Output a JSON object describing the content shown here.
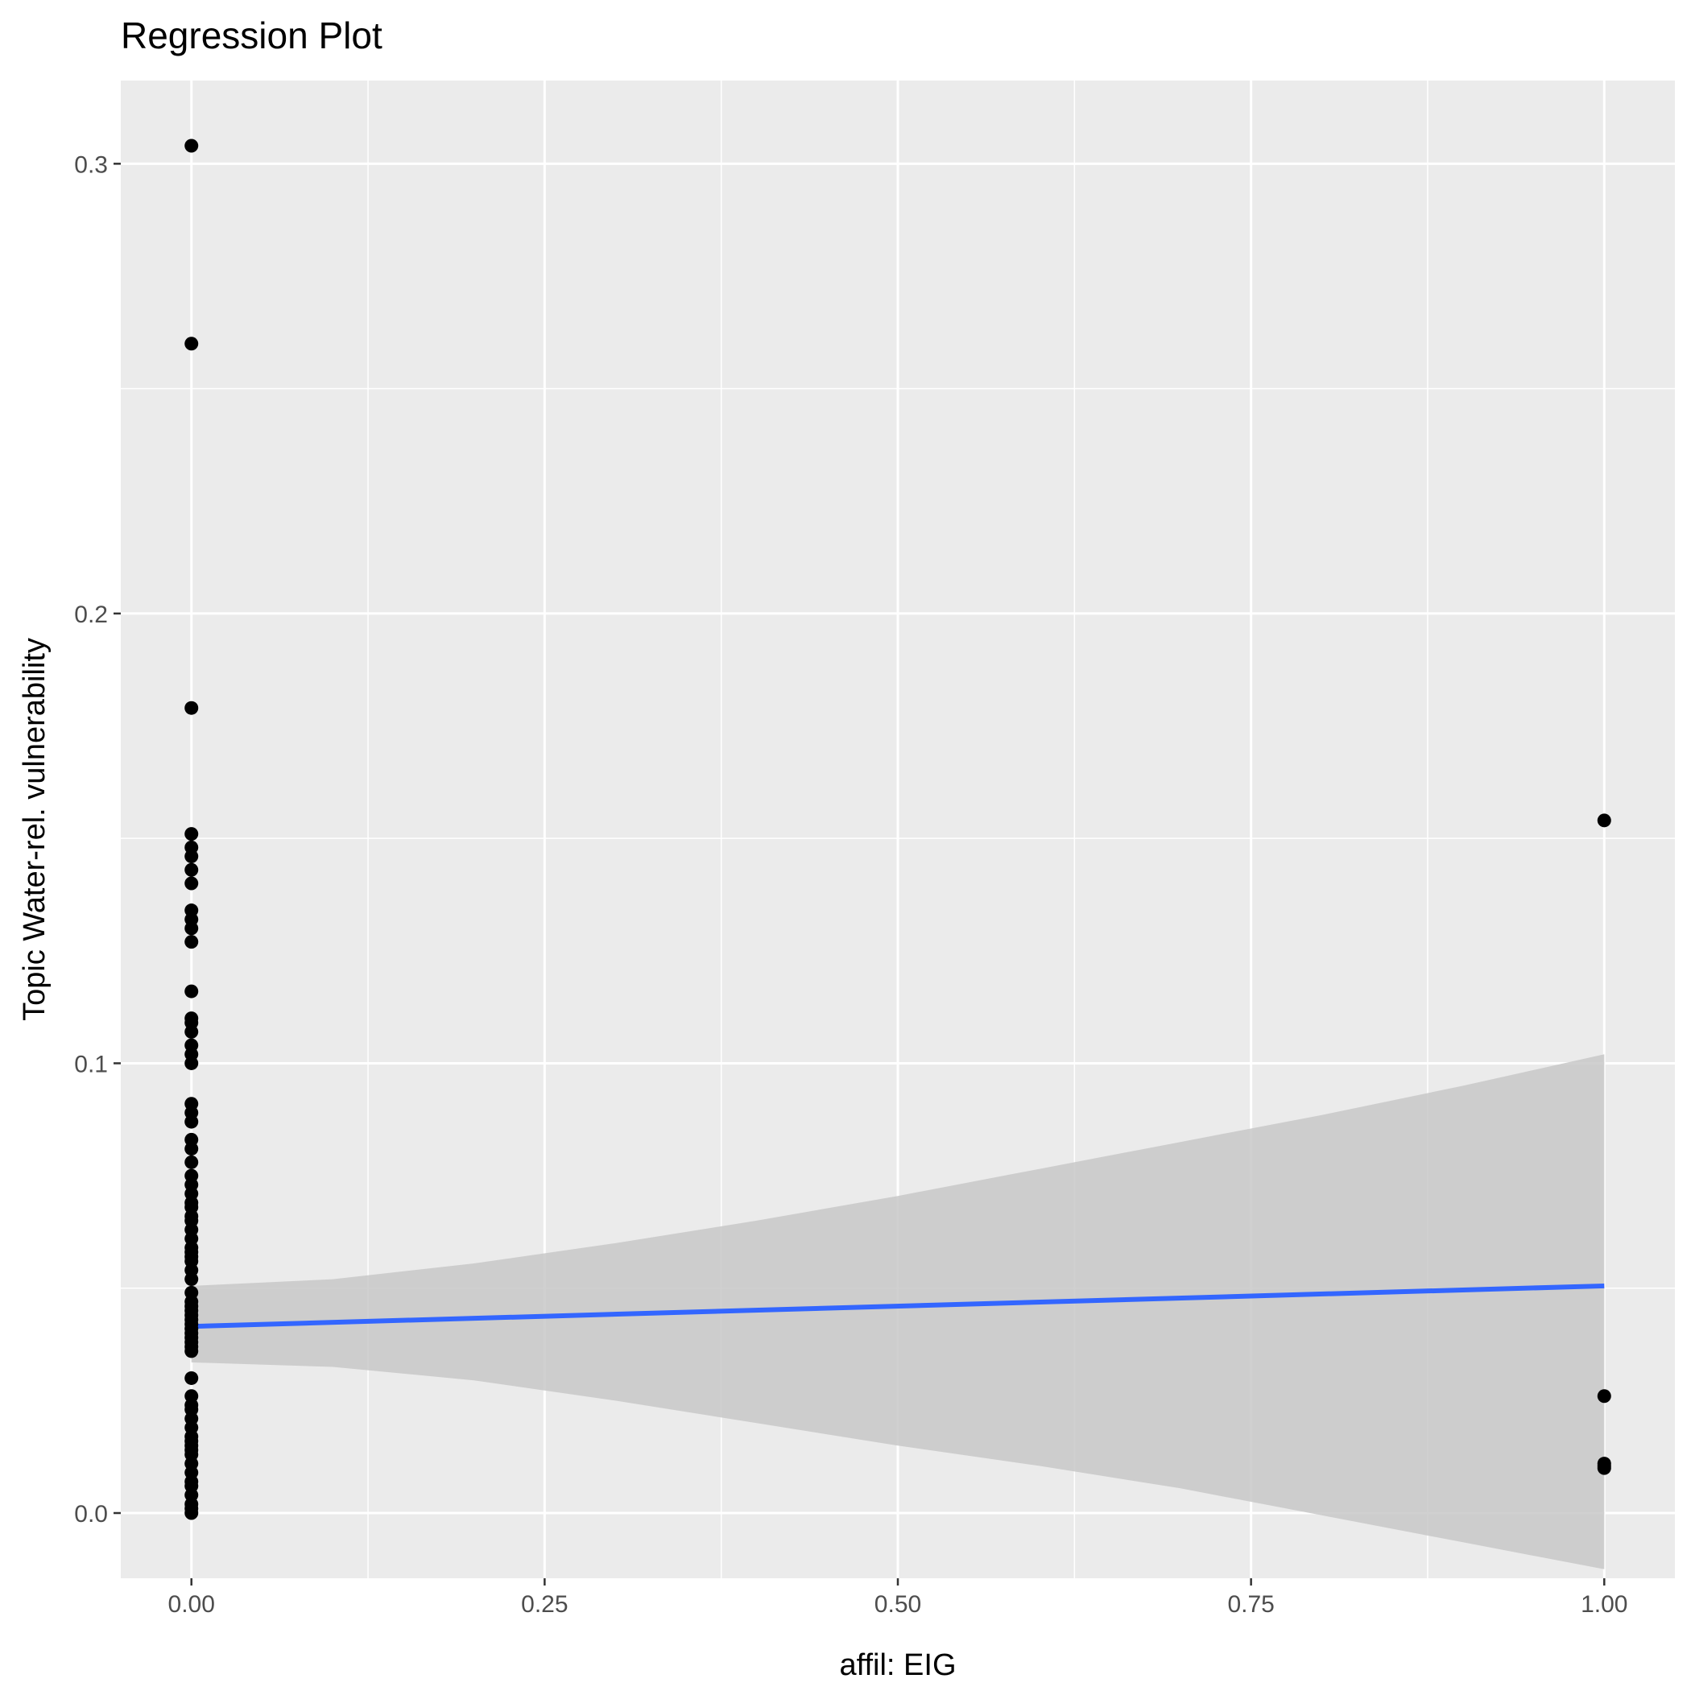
{
  "chart_data": {
    "type": "scatter",
    "title": "Regression Plot",
    "xlabel": "affil: EIG",
    "ylabel": "Topic Water-rel. vulnerability",
    "xlim": [
      -0.05,
      1.05
    ],
    "ylim": [
      -0.0145,
      0.3185
    ],
    "x_ticks": [
      0.0,
      0.25,
      0.5,
      0.75,
      1.0
    ],
    "x_tick_labels": [
      "0.00",
      "0.25",
      "0.50",
      "0.75",
      "1.00"
    ],
    "y_ticks": [
      0.0,
      0.1,
      0.2,
      0.3
    ],
    "y_tick_labels": [
      "0.0",
      "0.1",
      "0.2",
      "0.3"
    ],
    "grid": true,
    "legend": "none",
    "colors": {
      "panel": "#ebebeb",
      "grid": "#ffffff",
      "points": "#000000",
      "fit_line": "#3366ff",
      "confidence_band": "#c8c8c8"
    },
    "points": [
      [
        0,
        0.304
      ],
      [
        0,
        0.26
      ],
      [
        0,
        0.179
      ],
      [
        0,
        0.151
      ],
      [
        0,
        0.148
      ],
      [
        0,
        0.146
      ],
      [
        0,
        0.143
      ],
      [
        0,
        0.14
      ],
      [
        0,
        0.134
      ],
      [
        0,
        0.132
      ],
      [
        0,
        0.13
      ],
      [
        0,
        0.127
      ],
      [
        0,
        0.116
      ],
      [
        0,
        0.11
      ],
      [
        0,
        0.109
      ],
      [
        0,
        0.107
      ],
      [
        0,
        0.104
      ],
      [
        0,
        0.102
      ],
      [
        0,
        0.1
      ],
      [
        0,
        0.091
      ],
      [
        0,
        0.089
      ],
      [
        0,
        0.087
      ],
      [
        0,
        0.083
      ],
      [
        0,
        0.081
      ],
      [
        0,
        0.078
      ],
      [
        0,
        0.075
      ],
      [
        0,
        0.073
      ],
      [
        0,
        0.071
      ],
      [
        0,
        0.069
      ],
      [
        0,
        0.068
      ],
      [
        0,
        0.066
      ],
      [
        0,
        0.065
      ],
      [
        0,
        0.063
      ],
      [
        0,
        0.061
      ],
      [
        0,
        0.059
      ],
      [
        0,
        0.058
      ],
      [
        0,
        0.057
      ],
      [
        0,
        0.056
      ],
      [
        0,
        0.054
      ],
      [
        0,
        0.052
      ],
      [
        0,
        0.049
      ],
      [
        0,
        0.047
      ],
      [
        0,
        0.046
      ],
      [
        0,
        0.045
      ],
      [
        0,
        0.044
      ],
      [
        0,
        0.043
      ],
      [
        0,
        0.042
      ],
      [
        0,
        0.041
      ],
      [
        0,
        0.04
      ],
      [
        0,
        0.039
      ],
      [
        0,
        0.038
      ],
      [
        0,
        0.037
      ],
      [
        0,
        0.036
      ],
      [
        0,
        0.03
      ],
      [
        0,
        0.026
      ],
      [
        0,
        0.024
      ],
      [
        0,
        0.023
      ],
      [
        0,
        0.021
      ],
      [
        0,
        0.019
      ],
      [
        0,
        0.017
      ],
      [
        0,
        0.016
      ],
      [
        0,
        0.015
      ],
      [
        0,
        0.014
      ],
      [
        0,
        0.013
      ],
      [
        0,
        0.011
      ],
      [
        0,
        0.009
      ],
      [
        0,
        0.007
      ],
      [
        0,
        0.006
      ],
      [
        0,
        0.004
      ],
      [
        0,
        0.002
      ],
      [
        0,
        0.001
      ],
      [
        0,
        0.0
      ],
      [
        1,
        0.154
      ],
      [
        1,
        0.026
      ],
      [
        1,
        0.011
      ],
      [
        1,
        0.0105
      ],
      [
        1,
        0.01
      ]
    ],
    "fit_line": {
      "x": [
        0,
        1
      ],
      "y": [
        0.0415,
        0.0505
      ]
    },
    "confidence_band": {
      "x": [
        0,
        0.1,
        0.2,
        0.3,
        0.4,
        0.5,
        0.6,
        0.7,
        0.8,
        0.9,
        1.0
      ],
      "upper": [
        0.0505,
        0.052,
        0.0555,
        0.06,
        0.065,
        0.0705,
        0.0765,
        0.0825,
        0.0885,
        0.095,
        0.102
      ],
      "lower": [
        0.0335,
        0.0325,
        0.0295,
        0.025,
        0.02,
        0.015,
        0.0105,
        0.0055,
        -0.0005,
        -0.0065,
        -0.0125
      ]
    }
  }
}
